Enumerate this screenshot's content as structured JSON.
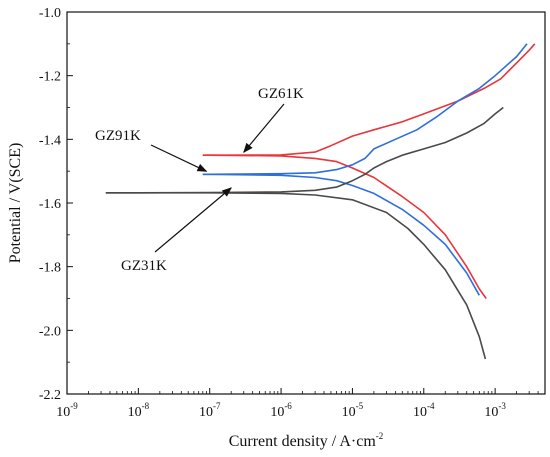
{
  "chart_data": {
    "type": "line",
    "xlabel": "Current density / A·cm",
    "xlabel_exponent": "-2",
    "ylabel": "Potential / V(SCE)",
    "x_scale": "log",
    "x_range": [
      1e-09,
      0.005
    ],
    "y_range": [
      -2.2,
      -1.0
    ],
    "x_ticks": [
      {
        "mantissa": "10",
        "exponent": "-9",
        "value": 1e-09
      },
      {
        "mantissa": "10",
        "exponent": "-8",
        "value": 1e-08
      },
      {
        "mantissa": "10",
        "exponent": "-7",
        "value": 1e-07
      },
      {
        "mantissa": "10",
        "exponent": "-6",
        "value": 1e-06
      },
      {
        "mantissa": "10",
        "exponent": "-5",
        "value": 1e-05
      },
      {
        "mantissa": "10",
        "exponent": "-4",
        "value": 0.0001
      },
      {
        "mantissa": "10",
        "exponent": "-3",
        "value": 0.001
      }
    ],
    "y_ticks": [
      {
        "label": "-1.0",
        "value": -1.0
      },
      {
        "label": "-1.2",
        "value": -1.2
      },
      {
        "label": "-1.4",
        "value": -1.4
      },
      {
        "label": "-1.6",
        "value": -1.6
      },
      {
        "label": "-1.8",
        "value": -1.8
      },
      {
        "label": "-2.0",
        "value": -2.0
      },
      {
        "label": "-2.2",
        "value": -2.2
      }
    ],
    "grid": false,
    "legend": "none",
    "series": [
      {
        "name": "GZ61K",
        "color": "#e8363c",
        "anodic": [
          [
            8e-08,
            -1.45
          ],
          [
            1e-07,
            -1.45
          ],
          [
            1e-06,
            -1.449
          ],
          [
            3e-06,
            -1.44
          ],
          [
            5e-06,
            -1.42
          ],
          [
            1e-05,
            -1.39
          ],
          [
            2e-05,
            -1.37
          ],
          [
            5e-05,
            -1.345
          ],
          [
            0.0001,
            -1.32
          ],
          [
            0.0003,
            -1.28
          ],
          [
            0.0007,
            -1.24
          ],
          [
            0.0012,
            -1.21
          ],
          [
            0.002,
            -1.16
          ],
          [
            0.003,
            -1.12
          ],
          [
            0.0036,
            -1.1
          ]
        ],
        "cathodic": [
          [
            8e-08,
            -1.45
          ],
          [
            1e-07,
            -1.45
          ],
          [
            1e-06,
            -1.452
          ],
          [
            3e-06,
            -1.46
          ],
          [
            6e-06,
            -1.47
          ],
          [
            1e-05,
            -1.49
          ],
          [
            2e-05,
            -1.52
          ],
          [
            5e-05,
            -1.58
          ],
          [
            0.0001,
            -1.63
          ],
          [
            0.0002,
            -1.7
          ],
          [
            0.0004,
            -1.8
          ],
          [
            0.0006,
            -1.87
          ],
          [
            0.00075,
            -1.9
          ]
        ]
      },
      {
        "name": "GZ91K",
        "color": "#2f6fdb",
        "anodic": [
          [
            8e-08,
            -1.51
          ],
          [
            1e-07,
            -1.51
          ],
          [
            1e-06,
            -1.508
          ],
          [
            3e-06,
            -1.505
          ],
          [
            6e-06,
            -1.495
          ],
          [
            1e-05,
            -1.48
          ],
          [
            1.5e-05,
            -1.46
          ],
          [
            2e-05,
            -1.43
          ],
          [
            4e-05,
            -1.4
          ],
          [
            8e-05,
            -1.37
          ],
          [
            0.00015,
            -1.33
          ],
          [
            0.0003,
            -1.28
          ],
          [
            0.0006,
            -1.24
          ],
          [
            0.001,
            -1.2
          ],
          [
            0.002,
            -1.14
          ],
          [
            0.0028,
            -1.1
          ]
        ],
        "cathodic": [
          [
            8e-08,
            -1.51
          ],
          [
            1e-07,
            -1.51
          ],
          [
            1e-06,
            -1.513
          ],
          [
            3e-06,
            -1.52
          ],
          [
            6e-06,
            -1.53
          ],
          [
            1e-05,
            -1.545
          ],
          [
            2e-05,
            -1.57
          ],
          [
            5e-05,
            -1.62
          ],
          [
            0.0001,
            -1.67
          ],
          [
            0.0002,
            -1.73
          ],
          [
            0.0004,
            -1.82
          ],
          [
            0.0006,
            -1.89
          ]
        ]
      },
      {
        "name": "GZ31K",
        "color": "#4a4a4a",
        "anodic": [
          [
            3.5e-09,
            -1.568
          ],
          [
            1e-08,
            -1.568
          ],
          [
            1e-07,
            -1.567
          ],
          [
            1e-06,
            -1.565
          ],
          [
            3e-06,
            -1.56
          ],
          [
            6e-06,
            -1.55
          ],
          [
            1e-05,
            -1.53
          ],
          [
            1.5e-05,
            -1.51
          ],
          [
            2e-05,
            -1.49
          ],
          [
            3e-05,
            -1.47
          ],
          [
            5e-05,
            -1.45
          ],
          [
            0.0001,
            -1.43
          ],
          [
            0.0002,
            -1.41
          ],
          [
            0.0004,
            -1.38
          ],
          [
            0.0007,
            -1.35
          ],
          [
            0.001,
            -1.32
          ],
          [
            0.0013,
            -1.3
          ]
        ],
        "cathodic": [
          [
            3.5e-09,
            -1.568
          ],
          [
            1e-08,
            -1.568
          ],
          [
            1e-07,
            -1.568
          ],
          [
            1e-06,
            -1.57
          ],
          [
            3e-06,
            -1.575
          ],
          [
            1e-05,
            -1.59
          ],
          [
            3e-05,
            -1.63
          ],
          [
            6e-05,
            -1.68
          ],
          [
            0.0001,
            -1.73
          ],
          [
            0.0002,
            -1.81
          ],
          [
            0.0004,
            -1.92
          ],
          [
            0.0006,
            -2.02
          ],
          [
            0.00073,
            -2.09
          ]
        ]
      }
    ],
    "annotations": [
      {
        "text": "GZ61K",
        "target": [
          3e-07,
          -1.45
        ]
      },
      {
        "text": "GZ91K",
        "target": [
          9e-08,
          -1.51
        ]
      },
      {
        "text": "GZ31K",
        "target": [
          2e-07,
          -1.565
        ]
      }
    ]
  }
}
